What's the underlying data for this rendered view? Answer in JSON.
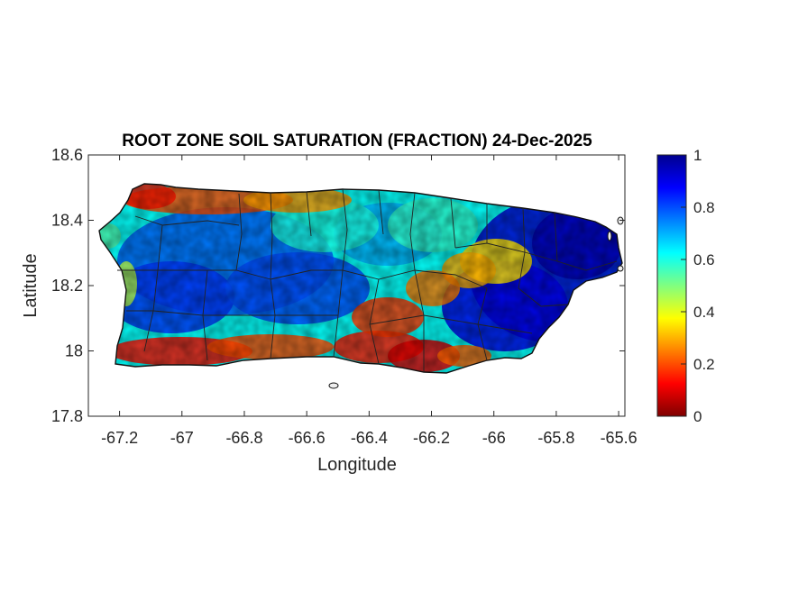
{
  "figure": {
    "title": "ROOT ZONE SOIL SATURATION (FRACTION) 24-Dec-2025",
    "xlabel": "Longitude",
    "ylabel": "Latitude",
    "x_ticks": [
      "-67.2",
      "-67",
      "-66.8",
      "-66.6",
      "-66.4",
      "-66.2",
      "-66",
      "-65.8",
      "-65.6"
    ],
    "y_ticks": [
      "18.6",
      "18.4",
      "18.2",
      "18",
      "17.8"
    ],
    "colorbar_ticks": [
      "1",
      "0.8",
      "0.6",
      "0.4",
      "0.2",
      "0"
    ]
  },
  "chart_data": {
    "type": "heatmap",
    "map_region": "Puerto Rico",
    "xlim": [
      -67.3,
      -65.58
    ],
    "ylim": [
      17.8,
      18.6
    ],
    "x_tick_values": [
      -67.2,
      -67.0,
      -66.8,
      -66.6,
      -66.4,
      -66.2,
      -66.0,
      -65.8,
      -65.6
    ],
    "y_tick_values": [
      18.6,
      18.4,
      18.2,
      18.0,
      17.8
    ],
    "colorbar": {
      "range": [
        0,
        1
      ],
      "colormap": "jet",
      "tick_values": [
        1,
        0.8,
        0.6,
        0.4,
        0.2,
        0
      ]
    },
    "grid": false,
    "approximate_pattern": [
      {
        "area": "north coast",
        "lon_range": [
          -67.15,
          -66.3
        ],
        "value": 0.2
      },
      {
        "area": "south coast",
        "lon_range": [
          -67.2,
          -66.1
        ],
        "value": 0.15
      },
      {
        "area": "south-central interior",
        "lon_range": [
          -66.4,
          -66.2
        ],
        "value": 0.2
      },
      {
        "area": "western interior",
        "lon_range": [
          -67.2,
          -66.5
        ],
        "value": 0.7
      },
      {
        "area": "eastern region",
        "lon_range": [
          -66.0,
          -65.6
        ],
        "value": 0.9
      }
    ]
  }
}
